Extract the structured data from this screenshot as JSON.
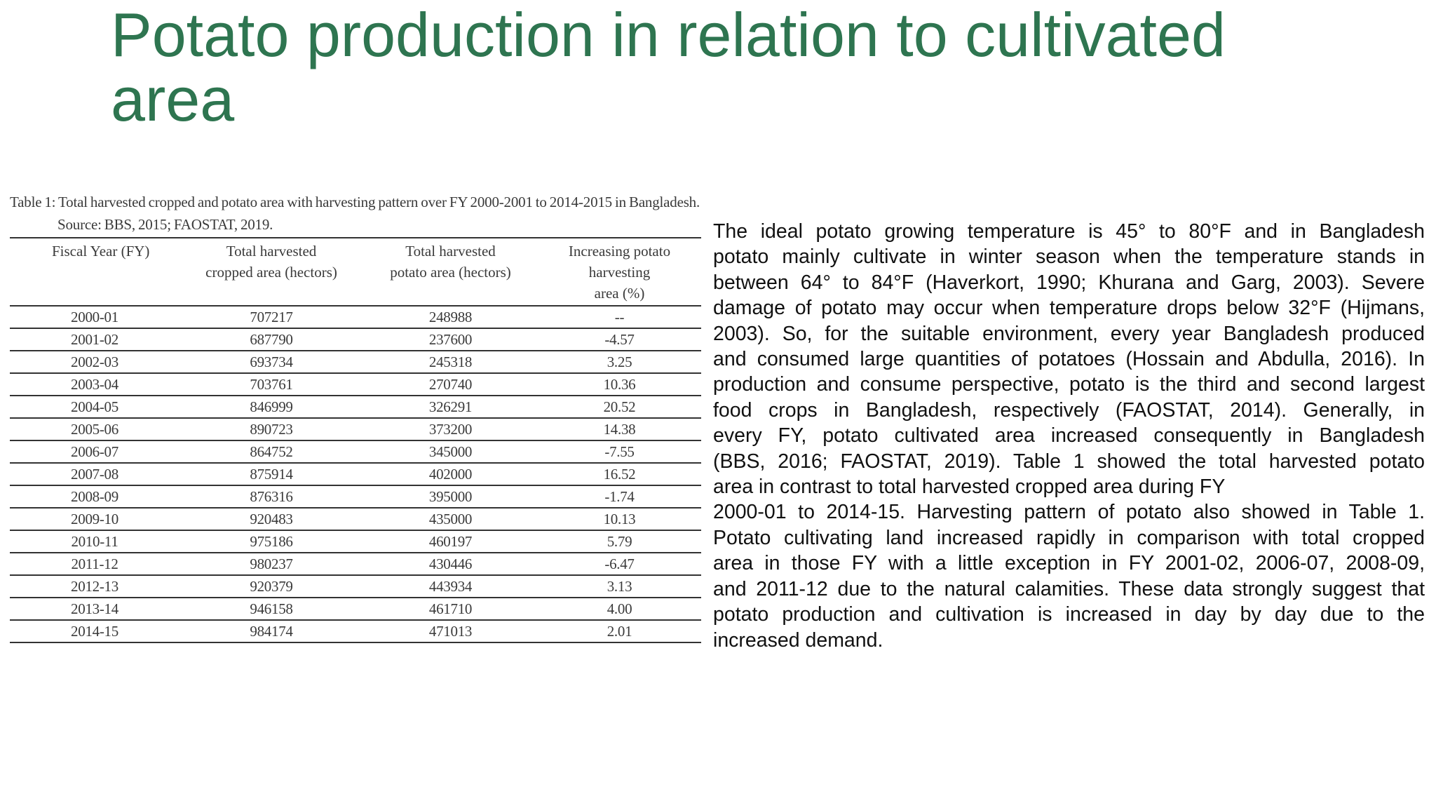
{
  "slide": {
    "title": "Potato production in relation to cultivated area"
  },
  "table": {
    "caption": "Table 1: Total harvested cropped and potato area with harvesting pattern over FY 2000-2001 to 2014-2015 in Bangladesh. Source: BBS, 2015; FAOSTAT, 2019.",
    "headers": {
      "fy": "Fiscal Year (FY)",
      "cropped_line1": "Total harvested",
      "cropped_line2": "cropped area (hectors)",
      "potato_line1": "Total harvested",
      "potato_line2": "potato area (hectors)",
      "increase_line1": "Increasing potato harvesting",
      "increase_line2": "area (%)"
    },
    "rows": [
      {
        "fy": "2000-01",
        "cropped": "707217",
        "potato": "248988",
        "increase": "--"
      },
      {
        "fy": "2001-02",
        "cropped": "687790",
        "potato": "237600",
        "increase": "-4.57"
      },
      {
        "fy": "2002-03",
        "cropped": "693734",
        "potato": "245318",
        "increase": "3.25"
      },
      {
        "fy": "2003-04",
        "cropped": "703761",
        "potato": "270740",
        "increase": "10.36"
      },
      {
        "fy": "2004-05",
        "cropped": "846999",
        "potato": "326291",
        "increase": "20.52"
      },
      {
        "fy": "2005-06",
        "cropped": "890723",
        "potato": "373200",
        "increase": "14.38"
      },
      {
        "fy": "2006-07",
        "cropped": "864752",
        "potato": "345000",
        "increase": "-7.55"
      },
      {
        "fy": "2007-08",
        "cropped": "875914",
        "potato": "402000",
        "increase": "16.52"
      },
      {
        "fy": "2008-09",
        "cropped": "876316",
        "potato": "395000",
        "increase": "-1.74"
      },
      {
        "fy": "2009-10",
        "cropped": "920483",
        "potato": "435000",
        "increase": "10.13"
      },
      {
        "fy": "2010-11",
        "cropped": "975186",
        "potato": "460197",
        "increase": "5.79"
      },
      {
        "fy": "2011-12",
        "cropped": "980237",
        "potato": "430446",
        "increase": "-6.47"
      },
      {
        "fy": "2012-13",
        "cropped": "920379",
        "potato": "443934",
        "increase": "3.13"
      },
      {
        "fy": "2013-14",
        "cropped": "946158",
        "potato": "461710",
        "increase": "4.00"
      },
      {
        "fy": "2014-15",
        "cropped": "984174",
        "potato": "471013",
        "increase": "2.01"
      }
    ]
  },
  "body": {
    "lines": [
      "The ideal potato growing temperature is 45° to 80°F and in Bangladesh",
      "potato mainly cultivate in winter season when the temperature stands in",
      "between 64° to 84°F (Haverkort, 1990; Khurana and Garg, 2003). Severe",
      "damage of potato may occur when temperature drops below 32°F (Hijmans,",
      "2003). So, for the suitable environment, every year Bangladesh produced",
      "and consumed large quantities of potatoes (Hossain and Abdulla, 2016). In",
      "production and consume perspective, potato is the third and second largest",
      "food crops in Bangladesh, respectively (FAOSTAT, 2014). Generally, in",
      "every FY, potato cultivated area increased consequently in Bangladesh",
      "(BBS, 2016; FAOSTAT, 2019). Table 1 showed the total harvested potato",
      "area in contrast to total harvested cropped area during FY",
      "2000-01 to 2014-15. Harvesting pattern of potato also showed in Table 1.",
      "Potato cultivating land increased rapidly in comparison with total cropped",
      "area in those FY with a little exception in FY 2001-02, 2006-07, 2008-09,",
      "and 2011-12 due to the natural calamities. These data strongly suggest that",
      "potato production and cultivation is increased in day by day due to the",
      "increased demand."
    ]
  },
  "colors": {
    "title": "#2e7550",
    "body_text": "#111111",
    "table_text": "#3a3a3a"
  }
}
